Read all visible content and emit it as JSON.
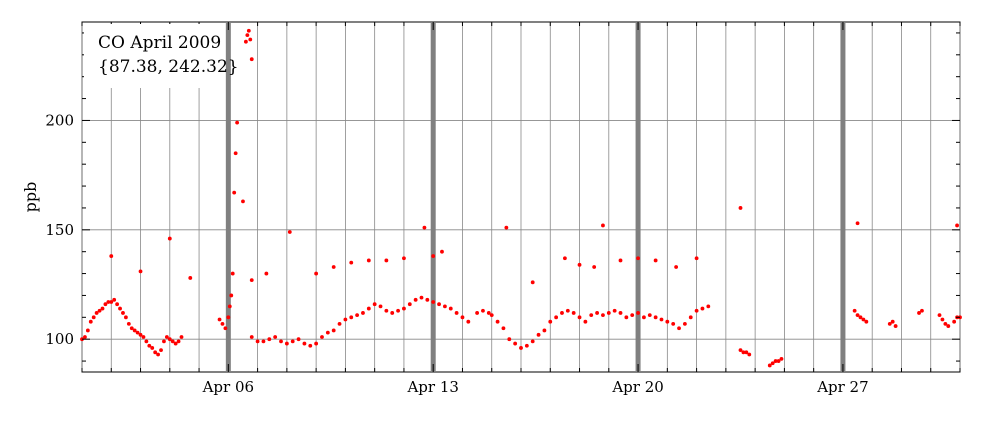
{
  "chart_data": {
    "type": "scatter",
    "annotation_title": "CO April 2009",
    "annotation_range": "{87.38, 242.32}",
    "ylabel": "ppb",
    "xlabel": "",
    "xlim": [
      0.0,
      30.0
    ],
    "ylim": [
      85,
      245
    ],
    "x_axis_unit": "days since Apr 01 2009",
    "x_ticks": [
      {
        "label": "Apr 06",
        "value": 5.0
      },
      {
        "label": "Apr 13",
        "value": 12.0
      },
      {
        "label": "Apr 20",
        "value": 19.0
      },
      {
        "label": "Apr 27",
        "value": 26.0
      }
    ],
    "y_ticks": [
      100,
      150,
      200
    ],
    "grid": true,
    "marker_color": "#ff0000",
    "highlight_bar_color": "#808080",
    "highlight_x": [
      5.0,
      12.0,
      19.0,
      26.0
    ],
    "series": [
      {
        "name": "CO",
        "points": [
          [
            0.0,
            100
          ],
          [
            0.1,
            101
          ],
          [
            0.2,
            104
          ],
          [
            0.3,
            108
          ],
          [
            0.4,
            110
          ],
          [
            0.5,
            112
          ],
          [
            0.6,
            113
          ],
          [
            0.7,
            114
          ],
          [
            0.8,
            116
          ],
          [
            0.9,
            117
          ],
          [
            1.0,
            117
          ],
          [
            1.1,
            118
          ],
          [
            1.2,
            116
          ],
          [
            1.3,
            114
          ],
          [
            1.4,
            112
          ],
          [
            1.5,
            110
          ],
          [
            1.6,
            107
          ],
          [
            1.7,
            105
          ],
          [
            1.8,
            104
          ],
          [
            1.9,
            103
          ],
          [
            2.0,
            102
          ],
          [
            2.1,
            101
          ],
          [
            2.2,
            99
          ],
          [
            2.3,
            97
          ],
          [
            2.4,
            96
          ],
          [
            2.5,
            94
          ],
          [
            2.6,
            93
          ],
          [
            2.7,
            95
          ],
          [
            2.8,
            99
          ],
          [
            2.9,
            101
          ],
          [
            3.0,
            100
          ],
          [
            3.1,
            99
          ],
          [
            3.2,
            98
          ],
          [
            3.3,
            99
          ],
          [
            3.4,
            101
          ],
          [
            1.0,
            138
          ],
          [
            2.0,
            131
          ],
          [
            3.0,
            146
          ],
          [
            3.7,
            128
          ],
          [
            4.7,
            109
          ],
          [
            4.8,
            107
          ],
          [
            4.9,
            105
          ],
          [
            5.0,
            110
          ],
          [
            5.05,
            115
          ],
          [
            5.1,
            120
          ],
          [
            5.15,
            130
          ],
          [
            5.2,
            167
          ],
          [
            5.25,
            185
          ],
          [
            5.3,
            199
          ],
          [
            5.5,
            163
          ],
          [
            5.6,
            236
          ],
          [
            5.65,
            239
          ],
          [
            5.7,
            241
          ],
          [
            5.75,
            237
          ],
          [
            5.8,
            228
          ],
          [
            6.3,
            130
          ],
          [
            5.8,
            127
          ],
          [
            5.8,
            101
          ],
          [
            6.0,
            99
          ],
          [
            6.2,
            99
          ],
          [
            6.4,
            100
          ],
          [
            6.6,
            101
          ],
          [
            6.8,
            99
          ],
          [
            7.0,
            98
          ],
          [
            7.2,
            99
          ],
          [
            7.4,
            100
          ],
          [
            7.6,
            98
          ],
          [
            7.8,
            97
          ],
          [
            8.0,
            98
          ],
          [
            8.2,
            101
          ],
          [
            8.4,
            103
          ],
          [
            8.6,
            104
          ],
          [
            8.8,
            107
          ],
          [
            9.0,
            109
          ],
          [
            9.2,
            110
          ],
          [
            9.4,
            111
          ],
          [
            9.6,
            112
          ],
          [
            9.8,
            114
          ],
          [
            10.0,
            116
          ],
          [
            10.2,
            115
          ],
          [
            10.4,
            113
          ],
          [
            10.6,
            112
          ],
          [
            10.8,
            113
          ],
          [
            11.0,
            114
          ],
          [
            11.2,
            116
          ],
          [
            11.4,
            118
          ],
          [
            11.6,
            119
          ],
          [
            11.8,
            118
          ],
          [
            12.0,
            117
          ],
          [
            12.2,
            116
          ],
          [
            12.4,
            115
          ],
          [
            12.6,
            114
          ],
          [
            12.8,
            112
          ],
          [
            13.0,
            110
          ],
          [
            13.2,
            108
          ],
          [
            7.1,
            149
          ],
          [
            8.0,
            130
          ],
          [
            8.6,
            133
          ],
          [
            9.2,
            135
          ],
          [
            9.8,
            136
          ],
          [
            10.4,
            136
          ],
          [
            11.0,
            137
          ],
          [
            11.7,
            151
          ],
          [
            12.3,
            140
          ],
          [
            12.0,
            138
          ],
          [
            13.5,
            112
          ],
          [
            13.7,
            113
          ],
          [
            13.9,
            112
          ],
          [
            14.0,
            111
          ],
          [
            14.2,
            108
          ],
          [
            14.4,
            105
          ],
          [
            14.6,
            100
          ],
          [
            14.8,
            98
          ],
          [
            15.0,
            96
          ],
          [
            15.2,
            97
          ],
          [
            15.4,
            99
          ],
          [
            15.6,
            102
          ],
          [
            15.8,
            104
          ],
          [
            16.0,
            108
          ],
          [
            16.2,
            110
          ],
          [
            16.4,
            112
          ],
          [
            16.6,
            113
          ],
          [
            16.8,
            112
          ],
          [
            17.0,
            110
          ],
          [
            17.2,
            108
          ],
          [
            17.4,
            111
          ],
          [
            17.6,
            112
          ],
          [
            17.8,
            111
          ],
          [
            18.0,
            112
          ],
          [
            18.2,
            113
          ],
          [
            18.4,
            112
          ],
          [
            18.6,
            110
          ],
          [
            18.8,
            111
          ],
          [
            19.0,
            112
          ],
          [
            19.2,
            110
          ],
          [
            19.4,
            111
          ],
          [
            19.6,
            110
          ],
          [
            19.8,
            109
          ],
          [
            20.0,
            108
          ],
          [
            20.2,
            107
          ],
          [
            20.4,
            105
          ],
          [
            20.6,
            107
          ],
          [
            20.8,
            110
          ],
          [
            21.0,
            113
          ],
          [
            21.2,
            114
          ],
          [
            21.4,
            115
          ],
          [
            14.5,
            151
          ],
          [
            15.4,
            126
          ],
          [
            16.5,
            137
          ],
          [
            17.0,
            134
          ],
          [
            17.8,
            152
          ],
          [
            17.5,
            133
          ],
          [
            18.4,
            136
          ],
          [
            19.0,
            137
          ],
          [
            19.6,
            136
          ],
          [
            21.0,
            137
          ],
          [
            20.3,
            133
          ],
          [
            22.5,
            95
          ],
          [
            22.6,
            94
          ],
          [
            22.7,
            94
          ],
          [
            22.8,
            93
          ],
          [
            22.5,
            160
          ],
          [
            23.5,
            88
          ],
          [
            23.6,
            89
          ],
          [
            23.7,
            90
          ],
          [
            23.8,
            90
          ],
          [
            23.9,
            91
          ],
          [
            26.4,
            113
          ],
          [
            26.5,
            111
          ],
          [
            26.6,
            110
          ],
          [
            26.7,
            109
          ],
          [
            26.8,
            108
          ],
          [
            26.5,
            153
          ],
          [
            27.6,
            107
          ],
          [
            27.7,
            108
          ],
          [
            27.8,
            106
          ],
          [
            28.6,
            112
          ],
          [
            28.7,
            113
          ],
          [
            29.3,
            111
          ],
          [
            29.4,
            109
          ],
          [
            29.5,
            107
          ],
          [
            29.6,
            106
          ],
          [
            29.8,
            108
          ],
          [
            29.9,
            110
          ],
          [
            30.0,
            110
          ],
          [
            29.9,
            152
          ]
        ]
      }
    ]
  }
}
